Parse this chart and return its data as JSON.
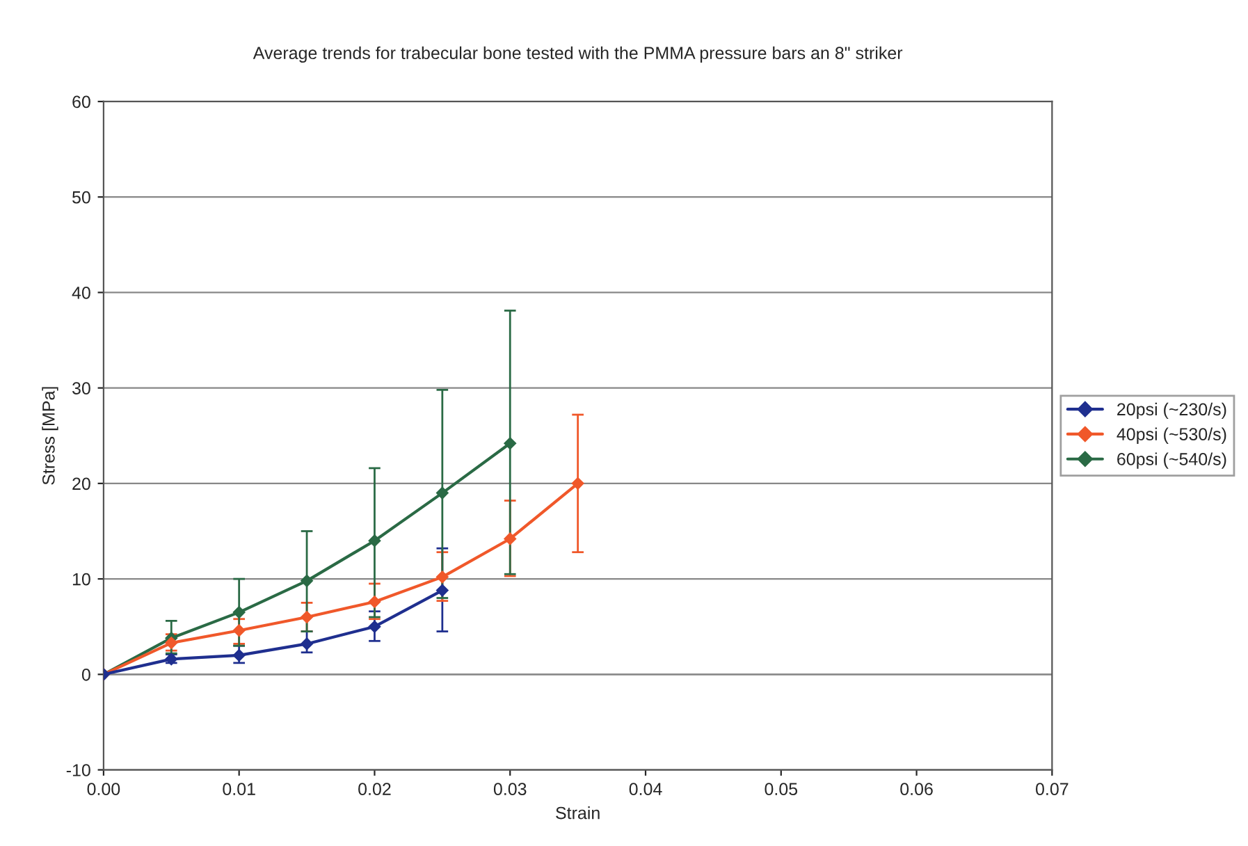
{
  "chart_data": {
    "type": "line",
    "title": "Average trends for trabecular bone tested with the PMMA pressure bars an 8\" striker",
    "xlabel": "Strain",
    "ylabel": "Stress [MPa]",
    "xlim": [
      0,
      0.07
    ],
    "xticks": [
      {
        "value": 0,
        "label": "0.00"
      },
      0.01,
      0.02,
      0.03,
      0.04,
      0.05,
      0.06,
      0.07
    ],
    "ylim": [
      -10,
      60
    ],
    "yticks": [
      -10,
      0,
      10,
      20,
      30,
      40,
      50,
      60
    ],
    "grid": "y",
    "legend": "right",
    "marker": "diamond",
    "series": [
      {
        "name": "20psi (~230/s)",
        "color": "#1f2f8f",
        "x": [
          0,
          0.005,
          0.01,
          0.015,
          0.02,
          0.025
        ],
        "values": [
          0,
          1.6,
          2.0,
          3.2,
          5.0,
          8.8
        ],
        "errors": [
          null,
          [
            1.2,
            2.1
          ],
          [
            1.2,
            3.0
          ],
          [
            2.3,
            4.5
          ],
          [
            3.5,
            6.6
          ],
          [
            4.5,
            13.2
          ]
        ]
      },
      {
        "name": "40psi (~530/s)",
        "color": "#f0582a",
        "x": [
          0,
          0.005,
          0.01,
          0.015,
          0.02,
          0.025,
          0.03,
          0.035
        ],
        "values": [
          0,
          3.3,
          4.6,
          6.0,
          7.6,
          10.2,
          14.2,
          20.0
        ],
        "errors": [
          null,
          [
            2.5,
            4.2
          ],
          [
            3.2,
            5.8
          ],
          [
            4.5,
            7.5
          ],
          [
            5.8,
            9.5
          ],
          [
            7.7,
            12.8
          ],
          [
            10.3,
            18.2
          ],
          [
            12.8,
            27.2
          ]
        ]
      },
      {
        "name": "60psi (~540/s)",
        "color": "#2a6a45",
        "x": [
          0,
          0.005,
          0.01,
          0.015,
          0.02,
          0.025,
          0.03
        ],
        "values": [
          0,
          3.8,
          6.5,
          9.8,
          14.0,
          19.0,
          24.2
        ],
        "errors": [
          null,
          [
            2.2,
            5.6
          ],
          [
            3.0,
            10.0
          ],
          [
            4.5,
            15.0
          ],
          [
            6.0,
            21.6
          ],
          [
            8.0,
            29.8
          ],
          [
            10.5,
            38.1
          ]
        ]
      }
    ]
  }
}
